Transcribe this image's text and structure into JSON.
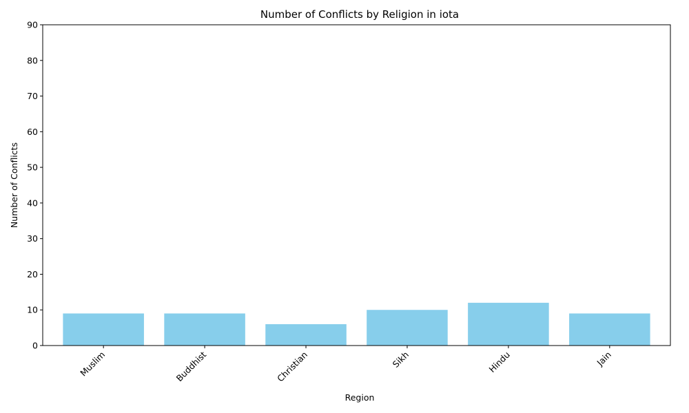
{
  "chart_data": {
    "type": "bar",
    "title": "Number of Conflicts by Religion in iota",
    "xlabel": "Region",
    "ylabel": "Number of Conflicts",
    "categories": [
      "Muslim",
      "Buddhist",
      "Christian",
      "Sikh",
      "Hindu",
      "Jain"
    ],
    "values": [
      9,
      9,
      6,
      10,
      12,
      9
    ],
    "ylim": [
      0,
      90
    ],
    "yticks": [
      0,
      10,
      20,
      30,
      40,
      50,
      60,
      70,
      80,
      90
    ],
    "grid": false,
    "legend": "none",
    "bar_color": "#87ceeb"
  }
}
